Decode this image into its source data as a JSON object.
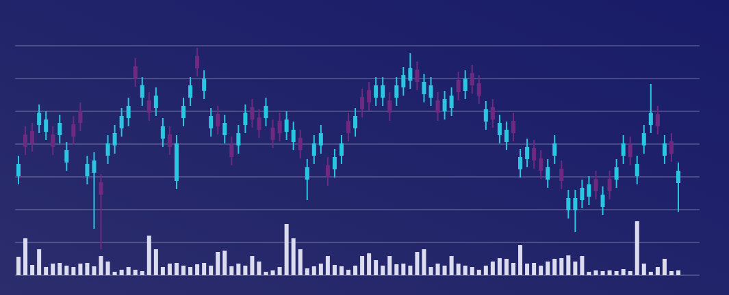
{
  "chart_data": {
    "type": "candlestick",
    "categories": [
      null,
      null,
      null,
      null,
      null,
      null,
      null,
      null,
      null,
      null,
      null,
      null,
      null,
      null,
      null,
      null,
      null,
      null,
      null,
      null,
      null,
      null,
      null,
      null,
      null,
      null,
      null,
      null,
      null,
      null,
      null,
      null,
      null,
      null,
      null,
      null,
      null,
      null,
      null,
      null,
      null,
      null,
      null,
      null,
      null,
      null,
      null,
      null,
      null,
      null,
      null,
      null,
      null,
      null,
      null,
      null,
      null,
      null,
      null,
      null,
      null,
      null,
      null,
      null,
      null,
      null,
      null,
      null,
      null,
      null,
      null,
      null,
      null,
      null,
      null,
      null,
      null,
      null,
      null,
      null,
      null,
      null,
      null,
      null,
      null,
      null,
      null,
      null,
      null,
      null,
      null,
      null,
      null,
      null,
      null,
      null,
      null
    ],
    "open": [
      145,
      206,
      211,
      220,
      210,
      206,
      205,
      165,
      221,
      241,
      145,
      150,
      136,
      175,
      190,
      215,
      230,
      306,
      260,
      256,
      245,
      200,
      206,
      138,
      230,
      260,
      321,
      270,
      215,
      236,
      205,
      191,
      190,
      220,
      246,
      231,
      230,
      216,
      226,
      210,
      195,
      201,
      140,
      175,
      190,
      161,
      155,
      175,
      226,
      215,
      261,
      271,
      260,
      260,
      256,
      260,
      275,
      285,
      301,
      265,
      260,
      256,
      240,
      245,
      286,
      270,
      296,
      281,
      225,
      246,
      205,
      195,
      226,
      155,
      170,
      186,
      171,
      140,
      175,
      156,
      95,
      95,
      110,
      115,
      141,
      100,
      141,
      140,
      175,
      191,
      145,
      190,
      220,
      236,
      175,
      196,
      135
    ],
    "high": [
      175,
      218,
      223,
      250,
      240,
      218,
      235,
      195,
      233,
      253,
      175,
      180,
      148,
      205,
      220,
      245,
      260,
      318,
      290,
      268,
      275,
      230,
      218,
      205,
      260,
      290,
      333,
      300,
      245,
      248,
      235,
      203,
      220,
      250,
      258,
      243,
      260,
      228,
      238,
      240,
      225,
      213,
      170,
      205,
      220,
      173,
      185,
      205,
      238,
      245,
      273,
      283,
      290,
      290,
      268,
      290,
      305,
      325,
      313,
      295,
      290,
      268,
      270,
      275,
      298,
      300,
      308,
      293,
      255,
      258,
      235,
      225,
      238,
      185,
      200,
      198,
      183,
      170,
      205,
      168,
      125,
      125,
      140,
      145,
      153,
      130,
      153,
      170,
      205,
      203,
      175,
      220,
      280,
      248,
      205,
      208,
      165
    ],
    "low": [
      133,
      176,
      181,
      208,
      198,
      176,
      193,
      153,
      191,
      211,
      133,
      68,
      38,
      163,
      178,
      203,
      218,
      276,
      248,
      226,
      233,
      188,
      176,
      126,
      218,
      248,
      291,
      258,
      203,
      206,
      193,
      161,
      178,
      208,
      216,
      201,
      218,
      186,
      196,
      198,
      183,
      171,
      110,
      163,
      178,
      131,
      143,
      163,
      196,
      203,
      231,
      241,
      248,
      248,
      226,
      248,
      263,
      273,
      271,
      253,
      248,
      226,
      228,
      233,
      256,
      258,
      266,
      251,
      213,
      216,
      193,
      183,
      196,
      143,
      158,
      156,
      141,
      128,
      163,
      126,
      83,
      63,
      98,
      103,
      111,
      88,
      111,
      128,
      163,
      161,
      133,
      178,
      208,
      206,
      163,
      166,
      93
    ],
    "close": [
      163,
      188,
      193,
      238,
      228,
      188,
      223,
      183,
      203,
      223,
      163,
      168,
      118,
      193,
      208,
      233,
      248,
      288,
      278,
      238,
      263,
      218,
      188,
      193,
      248,
      278,
      303,
      288,
      233,
      218,
      223,
      173,
      208,
      238,
      228,
      213,
      248,
      198,
      208,
      228,
      213,
      183,
      158,
      193,
      208,
      143,
      173,
      193,
      208,
      233,
      243,
      253,
      278,
      278,
      238,
      278,
      293,
      303,
      283,
      283,
      278,
      238,
      258,
      263,
      268,
      288,
      278,
      263,
      243,
      228,
      223,
      213,
      208,
      173,
      188,
      168,
      153,
      158,
      193,
      138,
      113,
      113,
      128,
      133,
      123,
      118,
      123,
      158,
      193,
      173,
      163,
      208,
      238,
      218,
      193,
      178,
      153
    ],
    "volume": [
      27,
      54,
      15,
      38,
      12,
      17,
      18,
      14,
      12,
      17,
      18,
      13,
      28,
      20,
      5,
      8,
      12,
      8,
      6,
      58,
      38,
      12,
      17,
      18,
      14,
      12,
      16,
      18,
      14,
      34,
      36,
      13,
      17,
      14,
      28,
      20,
      5,
      7,
      12,
      75,
      54,
      38,
      10,
      13,
      17,
      28,
      15,
      13,
      8,
      14,
      28,
      32,
      22,
      14,
      28,
      16,
      17,
      14,
      34,
      38,
      12,
      17,
      14,
      28,
      17,
      14,
      12,
      8,
      14,
      20,
      25,
      24,
      18,
      44,
      17,
      18,
      14,
      20,
      24,
      25,
      29,
      20,
      28,
      5,
      7,
      6,
      7,
      6,
      9,
      6,
      79,
      17,
      5,
      12,
      24,
      6,
      7
    ],
    "up_color": "#2ac6e2",
    "down_color": "#6d2a80",
    "volume_color": "#dcdcf0",
    "ylim": [
      0,
      336
    ],
    "yticks": [
      0,
      48,
      96,
      144,
      192,
      240,
      288,
      336
    ],
    "grid": true
  }
}
